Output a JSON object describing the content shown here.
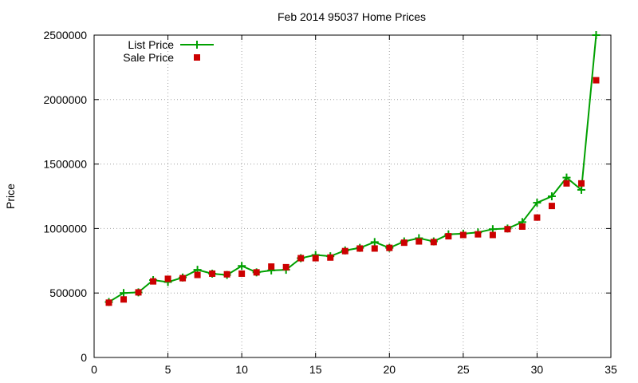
{
  "chart_data": {
    "type": "line",
    "title": "Feb 2014 95037 Home Prices",
    "xlabel": "",
    "ylabel": "Price",
    "xlim": [
      0,
      35
    ],
    "ylim": [
      0,
      2500000
    ],
    "x_ticks": [
      0,
      5,
      10,
      15,
      20,
      25,
      30,
      35
    ],
    "y_ticks": [
      0,
      500000,
      1000000,
      1500000,
      2000000,
      2500000
    ],
    "grid": true,
    "legend_position": "top-left",
    "series": [
      {
        "name": "List Price",
        "style": "line-with-plus-markers",
        "color": "#00a000",
        "x": [
          1,
          2,
          3,
          4,
          5,
          6,
          7,
          8,
          9,
          10,
          11,
          12,
          13,
          14,
          15,
          16,
          17,
          18,
          19,
          20,
          21,
          22,
          23,
          24,
          25,
          26,
          27,
          28,
          29,
          30,
          31,
          32,
          33,
          34
        ],
        "values": [
          430000,
          500000,
          505000,
          600000,
          585000,
          620000,
          680000,
          650000,
          640000,
          710000,
          660000,
          675000,
          680000,
          770000,
          795000,
          785000,
          830000,
          850000,
          895000,
          850000,
          900000,
          925000,
          900000,
          955000,
          960000,
          970000,
          995000,
          1000000,
          1050000,
          1200000,
          1250000,
          1395000,
          1300000,
          2500000
        ]
      },
      {
        "name": "Sale Price",
        "style": "square-markers",
        "color": "#cc0000",
        "x": [
          1,
          2,
          3,
          4,
          5,
          6,
          7,
          8,
          9,
          10,
          11,
          12,
          13,
          14,
          15,
          16,
          17,
          18,
          19,
          20,
          21,
          22,
          23,
          24,
          25,
          26,
          27,
          28,
          29,
          30,
          31,
          32,
          33,
          34
        ],
        "values": [
          425000,
          450000,
          505000,
          590000,
          610000,
          615000,
          640000,
          650000,
          645000,
          650000,
          660000,
          705000,
          700000,
          770000,
          770000,
          775000,
          825000,
          845000,
          845000,
          850000,
          890000,
          900000,
          895000,
          940000,
          950000,
          955000,
          950000,
          995000,
          1015000,
          1085000,
          1175000,
          1350000,
          1350000,
          2150000
        ]
      }
    ]
  }
}
